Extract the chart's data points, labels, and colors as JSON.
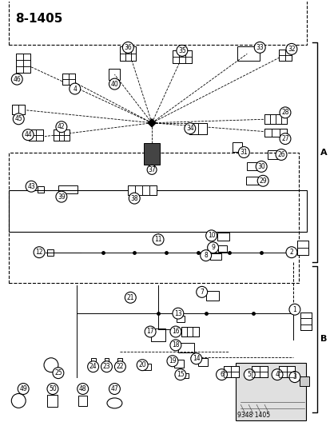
{
  "title": "8-1405",
  "subtitle": "9348 1405",
  "bg_color": "#ffffff",
  "fg_color": "#000000",
  "fig_width": 4.14,
  "fig_height": 5.33,
  "dpi": 100
}
